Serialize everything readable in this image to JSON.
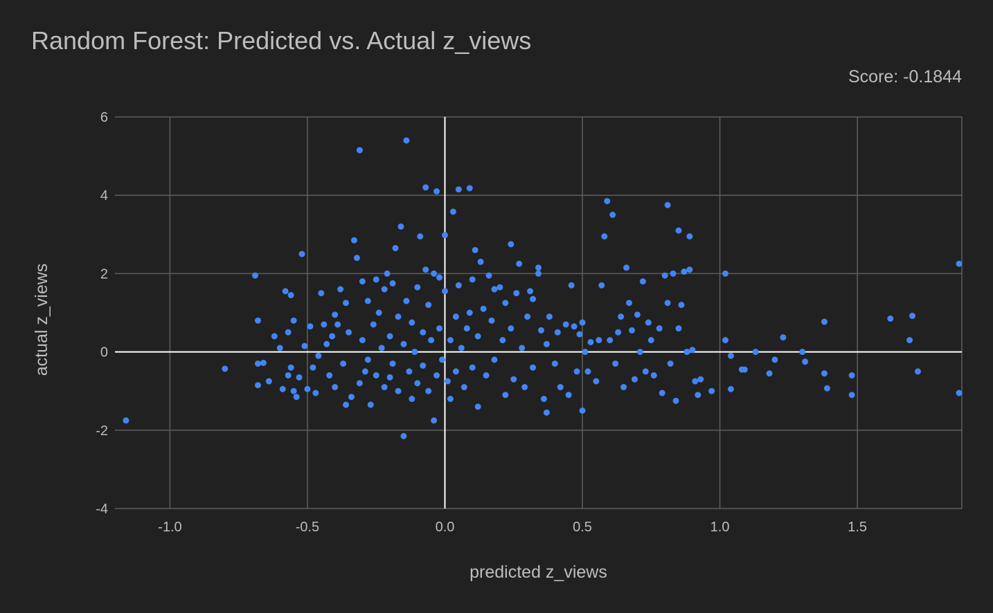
{
  "chart_data": {
    "type": "scatter",
    "title": "Random Forest: Predicted vs. Actual z_views",
    "subtitle": "Score: -0.1844",
    "xlabel": "predicted z_views",
    "ylabel": "actual z_views",
    "xlim": [
      -1.2,
      1.88
    ],
    "ylim": [
      -4,
      6
    ],
    "xticks": [
      -1.0,
      -0.5,
      0.0,
      0.5,
      1.0,
      1.5
    ],
    "xtick_labels": [
      "-1.0",
      "-0.5",
      "0.0",
      "0.5",
      "1.0",
      "1.5"
    ],
    "yticks": [
      -4,
      -2,
      0,
      2,
      4,
      6
    ],
    "ytick_labels": [
      "-4",
      "-2",
      "0",
      "2",
      "4",
      "6"
    ],
    "grid": true,
    "legend": "none",
    "colors": {
      "background": "#212121",
      "point": "#4285f4",
      "grid": "#5f5f5f",
      "zero_line": "#ffffff",
      "text": "#bdbdbd"
    },
    "series": [
      {
        "points": [
          [
            -1.16,
            -1.75
          ],
          [
            -0.8,
            -0.43
          ],
          [
            -0.69,
            1.95
          ],
          [
            -0.68,
            0.8
          ],
          [
            -0.68,
            -0.85
          ],
          [
            -0.68,
            -0.3
          ],
          [
            -0.66,
            -0.28
          ],
          [
            -0.64,
            -0.75
          ],
          [
            -0.62,
            0.4
          ],
          [
            -0.6,
            0.1
          ],
          [
            -0.59,
            -0.95
          ],
          [
            -0.58,
            1.55
          ],
          [
            -0.57,
            0.5
          ],
          [
            -0.57,
            -0.6
          ],
          [
            -0.56,
            1.45
          ],
          [
            -0.56,
            -0.4
          ],
          [
            -0.55,
            0.8
          ],
          [
            -0.55,
            -1.0
          ],
          [
            -0.54,
            -1.15
          ],
          [
            -0.53,
            -0.65
          ],
          [
            -0.52,
            2.5
          ],
          [
            -0.51,
            0.15
          ],
          [
            -0.5,
            -0.95
          ],
          [
            -0.49,
            0.65
          ],
          [
            -0.48,
            -0.4
          ],
          [
            -0.47,
            -1.05
          ],
          [
            -0.46,
            -0.1
          ],
          [
            -0.45,
            1.5
          ],
          [
            -0.44,
            0.7
          ],
          [
            -0.43,
            0.2
          ],
          [
            -0.42,
            -0.6
          ],
          [
            -0.41,
            0.4
          ],
          [
            -0.4,
            -0.9
          ],
          [
            -0.4,
            0.95
          ],
          [
            -0.39,
            0.7
          ],
          [
            -0.38,
            1.6
          ],
          [
            -0.37,
            -0.3
          ],
          [
            -0.36,
            1.25
          ],
          [
            -0.36,
            -1.35
          ],
          [
            -0.35,
            0.5
          ],
          [
            -0.34,
            -1.15
          ],
          [
            -0.33,
            2.85
          ],
          [
            -0.32,
            2.4
          ],
          [
            -0.31,
            5.15
          ],
          [
            -0.31,
            -0.8
          ],
          [
            -0.3,
            1.8
          ],
          [
            -0.3,
            0.3
          ],
          [
            -0.29,
            -0.5
          ],
          [
            -0.28,
            1.3
          ],
          [
            -0.28,
            -0.2
          ],
          [
            -0.27,
            -1.35
          ],
          [
            -0.26,
            0.7
          ],
          [
            -0.25,
            1.85
          ],
          [
            -0.25,
            -0.6
          ],
          [
            -0.24,
            1.0
          ],
          [
            -0.23,
            0.1
          ],
          [
            -0.22,
            -0.9
          ],
          [
            -0.22,
            1.6
          ],
          [
            -0.21,
            2.0
          ],
          [
            -0.2,
            0.4
          ],
          [
            -0.2,
            -0.65
          ],
          [
            -0.19,
            1.75
          ],
          [
            -0.19,
            -0.3
          ],
          [
            -0.18,
            2.65
          ],
          [
            -0.17,
            0.9
          ],
          [
            -0.17,
            -1.0
          ],
          [
            -0.16,
            3.2
          ],
          [
            -0.15,
            0.2
          ],
          [
            -0.15,
            -2.15
          ],
          [
            -0.14,
            5.4
          ],
          [
            -0.14,
            1.3
          ],
          [
            -0.13,
            -0.5
          ],
          [
            -0.12,
            0.75
          ],
          [
            -0.12,
            -1.2
          ],
          [
            -0.11,
            0.0
          ],
          [
            -0.1,
            1.65
          ],
          [
            -0.1,
            -0.8
          ],
          [
            -0.09,
            2.95
          ],
          [
            -0.08,
            0.5
          ],
          [
            -0.08,
            -0.35
          ],
          [
            -0.07,
            4.2
          ],
          [
            -0.07,
            2.1
          ],
          [
            -0.06,
            1.2
          ],
          [
            -0.06,
            -1.0
          ],
          [
            -0.05,
            0.3
          ],
          [
            -0.04,
            2.0
          ],
          [
            -0.04,
            -1.75
          ],
          [
            -0.03,
            4.1
          ],
          [
            -0.03,
            -0.6
          ],
          [
            -0.02,
            1.9
          ],
          [
            -0.02,
            0.6
          ],
          [
            -0.01,
            -0.2
          ],
          [
            0.0,
            2.98
          ],
          [
            0.0,
            1.55
          ],
          [
            0.01,
            -0.75
          ],
          [
            0.02,
            0.3
          ],
          [
            0.02,
            -1.2
          ],
          [
            0.03,
            3.58
          ],
          [
            0.04,
            0.9
          ],
          [
            0.04,
            -0.5
          ],
          [
            0.05,
            4.15
          ],
          [
            0.05,
            1.7
          ],
          [
            0.06,
            0.1
          ],
          [
            0.07,
            -0.9
          ],
          [
            0.08,
            0.6
          ],
          [
            0.09,
            4.18
          ],
          [
            0.09,
            1.0
          ],
          [
            0.1,
            -0.4
          ],
          [
            0.1,
            1.85
          ],
          [
            0.11,
            2.6
          ],
          [
            0.12,
            0.4
          ],
          [
            0.12,
            -1.4
          ],
          [
            0.13,
            2.3
          ],
          [
            0.14,
            1.1
          ],
          [
            0.15,
            -0.6
          ],
          [
            0.16,
            1.95
          ],
          [
            0.17,
            0.8
          ],
          [
            0.18,
            1.6
          ],
          [
            0.18,
            -0.2
          ],
          [
            0.2,
            1.65
          ],
          [
            0.21,
            0.3
          ],
          [
            0.22,
            -1.1
          ],
          [
            0.22,
            1.25
          ],
          [
            0.24,
            2.75
          ],
          [
            0.24,
            0.6
          ],
          [
            0.25,
            -0.7
          ],
          [
            0.26,
            1.5
          ],
          [
            0.27,
            2.25
          ],
          [
            0.28,
            0.1
          ],
          [
            0.29,
            -0.9
          ],
          [
            0.3,
            0.9
          ],
          [
            0.31,
            1.55
          ],
          [
            0.32,
            1.35
          ],
          [
            0.32,
            -0.4
          ],
          [
            0.34,
            2.15
          ],
          [
            0.34,
            2.0
          ],
          [
            0.35,
            0.55
          ],
          [
            0.36,
            -1.2
          ],
          [
            0.37,
            0.2
          ],
          [
            0.37,
            -1.55
          ],
          [
            0.38,
            0.9
          ],
          [
            0.4,
            -0.3
          ],
          [
            0.41,
            0.5
          ],
          [
            0.42,
            -0.9
          ],
          [
            0.44,
            0.7
          ],
          [
            0.45,
            -1.1
          ],
          [
            0.46,
            1.7
          ],
          [
            0.47,
            0.65
          ],
          [
            0.48,
            -0.5
          ],
          [
            0.49,
            0.45
          ],
          [
            0.5,
            0.75
          ],
          [
            0.5,
            -1.5
          ],
          [
            0.51,
            0.0
          ],
          [
            0.52,
            -0.5
          ],
          [
            0.53,
            0.25
          ],
          [
            0.55,
            -0.75
          ],
          [
            0.56,
            0.3
          ],
          [
            0.57,
            1.7
          ],
          [
            0.58,
            2.95
          ],
          [
            0.59,
            3.85
          ],
          [
            0.6,
            0.3
          ],
          [
            0.61,
            3.5
          ],
          [
            0.62,
            -0.3
          ],
          [
            0.63,
            0.5
          ],
          [
            0.64,
            0.9
          ],
          [
            0.65,
            -0.9
          ],
          [
            0.66,
            2.15
          ],
          [
            0.67,
            1.25
          ],
          [
            0.68,
            0.55
          ],
          [
            0.69,
            -0.7
          ],
          [
            0.7,
            0.95
          ],
          [
            0.71,
            0.0
          ],
          [
            0.72,
            1.8
          ],
          [
            0.73,
            -0.5
          ],
          [
            0.74,
            0.75
          ],
          [
            0.75,
            0.3
          ],
          [
            0.76,
            -0.6
          ],
          [
            0.78,
            0.6
          ],
          [
            0.79,
            -1.05
          ],
          [
            0.8,
            1.95
          ],
          [
            0.81,
            3.75
          ],
          [
            0.81,
            1.25
          ],
          [
            0.82,
            -0.3
          ],
          [
            0.83,
            2.0
          ],
          [
            0.84,
            -1.25
          ],
          [
            0.85,
            0.6
          ],
          [
            0.85,
            3.1
          ],
          [
            0.86,
            1.2
          ],
          [
            0.87,
            2.05
          ],
          [
            0.88,
            0.0
          ],
          [
            0.89,
            2.95
          ],
          [
            0.89,
            2.1
          ],
          [
            0.9,
            0.05
          ],
          [
            0.91,
            -0.75
          ],
          [
            0.92,
            -1.1
          ],
          [
            0.93,
            -0.7
          ],
          [
            0.97,
            -1.0
          ],
          [
            1.02,
            2.0
          ],
          [
            1.02,
            0.3
          ],
          [
            1.04,
            -0.1
          ],
          [
            1.04,
            -0.95
          ],
          [
            1.08,
            -0.45
          ],
          [
            1.09,
            -0.45
          ],
          [
            1.13,
            0.0
          ],
          [
            1.18,
            -0.55
          ],
          [
            1.2,
            -0.2
          ],
          [
            1.23,
            0.37
          ],
          [
            1.3,
            0.0
          ],
          [
            1.31,
            -0.25
          ],
          [
            1.38,
            0.77
          ],
          [
            1.38,
            -0.55
          ],
          [
            1.39,
            -0.93
          ],
          [
            1.48,
            -0.6
          ],
          [
            1.48,
            -1.1
          ],
          [
            1.62,
            0.85
          ],
          [
            1.69,
            0.3
          ],
          [
            1.7,
            0.92
          ],
          [
            1.72,
            -0.5
          ],
          [
            1.87,
            2.25
          ],
          [
            1.87,
            -1.05
          ]
        ]
      }
    ]
  }
}
